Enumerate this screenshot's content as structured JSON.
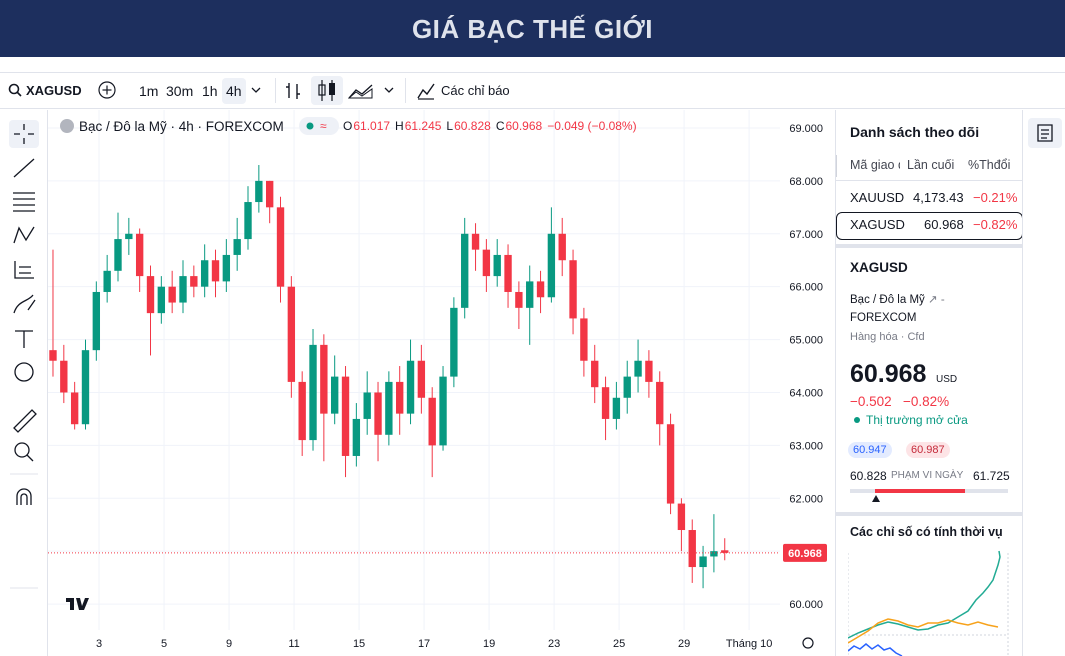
{
  "header": {
    "title": "GIÁ BẠC THẾ GIỚI"
  },
  "toolbar": {
    "symbol": "XAGUSD",
    "intervals": [
      "1m",
      "30m",
      "1h",
      "4h"
    ],
    "indicators": "Các chỉ báo"
  },
  "chart_data": {
    "type": "candlestick",
    "legend": {
      "name": "Bạc / Đô la Mỹ · 4h · FOREXCOM",
      "o": "O",
      "h": "H",
      "l": "L",
      "c": "C",
      "change": "−0.049 (−0.08%)"
    },
    "up_color": "#089981",
    "down_color": "#f23645",
    "x": [
      0,
      1,
      2,
      3,
      4,
      5,
      6,
      7,
      8,
      9,
      10,
      11,
      12,
      13,
      14,
      15,
      16,
      17,
      18,
      19,
      20,
      21,
      22,
      23,
      24,
      25,
      26,
      27,
      28,
      29,
      30,
      31,
      32,
      33,
      34,
      35,
      36,
      37,
      38,
      39,
      40,
      41,
      42,
      43,
      44,
      45,
      46,
      47,
      48,
      49,
      50,
      51,
      52,
      53,
      54,
      55,
      56,
      57,
      58,
      59,
      60,
      61,
      62
    ],
    "open": [
      64.8,
      64.6,
      64.0,
      63.4,
      64.8,
      65.9,
      66.3,
      66.9,
      67.0,
      66.2,
      65.5,
      66.0,
      65.7,
      66.2,
      66.0,
      66.5,
      66.1,
      66.6,
      66.9,
      67.6,
      68.0,
      67.5,
      66.0,
      64.2,
      63.1,
      64.9,
      63.6,
      64.3,
      62.8,
      63.5,
      64.0,
      63.2,
      64.2,
      63.6,
      64.6,
      63.9,
      63.0,
      64.3,
      65.6,
      67.0,
      66.7,
      66.2,
      66.6,
      65.9,
      65.6,
      66.1,
      65.8,
      67.0,
      66.5,
      65.4,
      64.6,
      64.1,
      63.5,
      63.9,
      64.3,
      64.6,
      64.2,
      63.4,
      61.9,
      61.4,
      60.7,
      60.9,
      61.017
    ],
    "high": [
      66.7,
      64.9,
      64.2,
      65.0,
      66.1,
      66.6,
      67.4,
      67.3,
      67.1,
      66.4,
      66.2,
      66.3,
      66.5,
      66.4,
      66.8,
      66.7,
      66.9,
      67.3,
      67.9,
      68.3,
      68.0,
      67.7,
      66.2,
      64.4,
      65.2,
      65.1,
      64.7,
      64.5,
      63.8,
      64.4,
      64.2,
      64.4,
      64.5,
      65.0,
      64.9,
      64.1,
      64.5,
      65.8,
      67.3,
      67.2,
      66.9,
      66.9,
      66.8,
      66.1,
      66.4,
      66.3,
      67.5,
      67.3,
      66.7,
      65.6,
      64.9,
      64.3,
      64.2,
      64.6,
      65.0,
      64.8,
      64.4,
      63.6,
      62.0,
      61.6,
      61.1,
      61.7,
      61.245
    ],
    "low": [
      64.3,
      63.8,
      63.3,
      63.3,
      64.6,
      65.7,
      66.1,
      66.6,
      65.9,
      64.7,
      65.3,
      65.5,
      65.5,
      65.8,
      65.8,
      65.8,
      65.9,
      66.3,
      66.7,
      67.4,
      67.2,
      65.7,
      63.9,
      62.8,
      62.9,
      62.7,
      63.4,
      62.4,
      62.6,
      63.2,
      62.7,
      63.0,
      63.2,
      63.4,
      63.6,
      62.4,
      62.9,
      64.1,
      65.4,
      66.3,
      65.9,
      66.0,
      65.6,
      65.2,
      64.9,
      65.5,
      65.7,
      66.2,
      65.1,
      64.3,
      63.8,
      63.1,
      63.3,
      63.6,
      64.0,
      63.9,
      63.0,
      61.7,
      61.0,
      60.4,
      60.3,
      60.6,
      60.828
    ],
    "close": [
      64.6,
      64.0,
      63.4,
      64.8,
      65.9,
      66.3,
      66.9,
      67.0,
      66.2,
      65.5,
      66.0,
      65.7,
      66.2,
      66.0,
      66.5,
      66.1,
      66.6,
      66.9,
      67.6,
      68.0,
      67.5,
      66.0,
      64.2,
      63.1,
      64.9,
      63.6,
      64.3,
      62.8,
      63.5,
      64.0,
      63.2,
      64.2,
      63.6,
      64.6,
      63.9,
      63.0,
      64.3,
      65.6,
      67.0,
      66.7,
      66.2,
      66.6,
      65.9,
      65.6,
      66.1,
      65.8,
      67.0,
      66.5,
      65.4,
      64.6,
      64.1,
      63.5,
      63.9,
      64.3,
      64.6,
      64.2,
      63.4,
      61.9,
      61.4,
      60.7,
      60.9,
      61.0,
      60.968
    ],
    "xlim": [
      -0.46,
      67.1
    ],
    "xticks": [
      {
        "value": 4.25,
        "label": "3"
      },
      {
        "value": 10.25,
        "label": "5"
      },
      {
        "value": 16.25,
        "label": "9"
      },
      {
        "value": 22.25,
        "label": "11"
      },
      {
        "value": 28.25,
        "label": "15"
      },
      {
        "value": 34.25,
        "label": "17"
      },
      {
        "value": 40.25,
        "label": "19"
      },
      {
        "value": 46.25,
        "label": "23"
      },
      {
        "value": 52.25,
        "label": "25"
      },
      {
        "value": 58.25,
        "label": "29"
      },
      {
        "value": 64.25,
        "label": "Tháng 10"
      }
    ],
    "ylim": [
      59.51,
      69.34
    ],
    "yticks": [
      {
        "value": 60,
        "label": "60.000"
      },
      {
        "value": 61,
        "label": "61.000"
      },
      {
        "value": 62,
        "label": "62.000"
      },
      {
        "value": 63,
        "label": "63.000"
      },
      {
        "value": 64,
        "label": "64.000"
      },
      {
        "value": 65,
        "label": "65.000"
      },
      {
        "value": 66,
        "label": "66.000"
      },
      {
        "value": 67,
        "label": "67.000"
      },
      {
        "value": 68,
        "label": "68.000"
      },
      {
        "value": 69,
        "label": "69.000"
      }
    ],
    "grid": true
  },
  "sidebar": {
    "watchlist_title": "Danh sách theo dõi",
    "columns": [
      "Mã giao d",
      "Lần cuối",
      "%Thđổi"
    ],
    "rows": [
      [
        "XAUUSD",
        "4,173.43",
        "−0.21%"
      ],
      [
        "XAGUSD",
        "60.968",
        "−0.82%"
      ]
    ],
    "symbol": "XAGUSD",
    "description": "Bạc / Đô la Mỹ",
    "exchange": "FOREXCOM",
    "category": "Hàng hóa · Cfd",
    "price": "60.968",
    "currency": "USD",
    "change": "−0.502",
    "change_pct": "−0.82%",
    "status": "Thị trường mở cửa",
    "bid": "60.947",
    "ask": "60.987",
    "range_low": "60.828",
    "range_label": "PHẠM VI NGÀY",
    "range_high": "61.725",
    "seasonal_title": "Các chỉ số có tính thời vụ"
  }
}
